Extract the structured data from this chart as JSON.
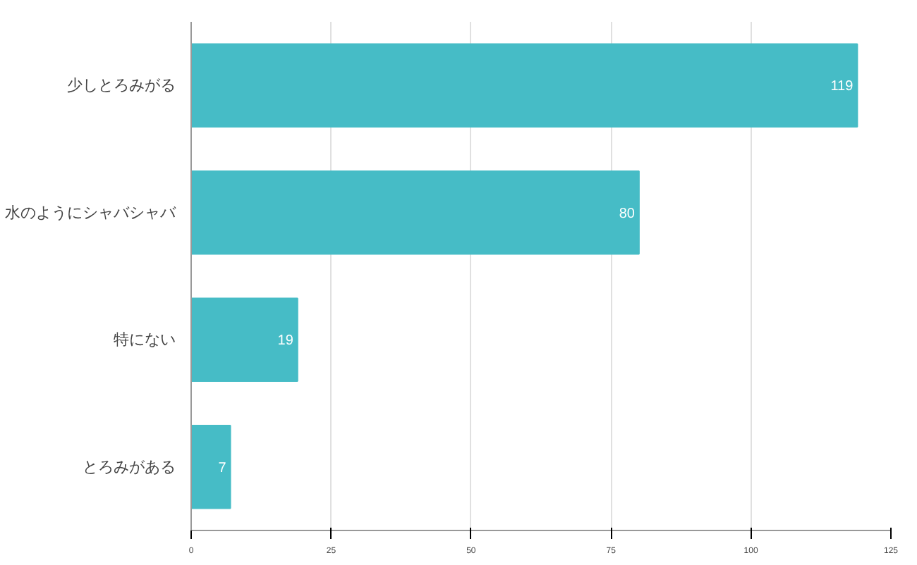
{
  "chart_data": {
    "type": "bar",
    "orientation": "horizontal",
    "categories": [
      "少しとろみがる",
      "水のようにシャバシャバ",
      "特にない",
      "とろみがある"
    ],
    "values": [
      119,
      80,
      19,
      7
    ],
    "color": "#46bcc6",
    "xlim": [
      0,
      125
    ],
    "xticks": [
      0,
      25,
      50,
      75,
      100,
      125
    ],
    "grid": "x",
    "data_labels": true
  }
}
